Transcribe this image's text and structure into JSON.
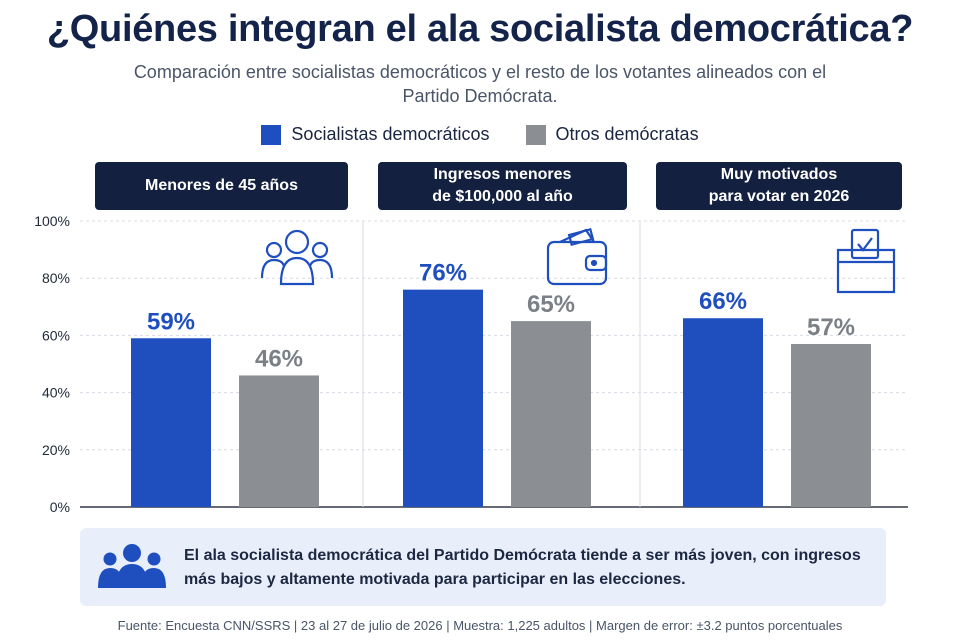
{
  "title": "¿Quiénes integran el ala socialista democrática?",
  "subtitle": "Comparación entre socialistas democráticos y el resto de los votantes alineados con el Partido Demócrata.",
  "colors": {
    "socialistas": "#1f4fbf",
    "otros": "#8b8e93",
    "header_bg": "#13203f",
    "summary_bg": "#e9effa"
  },
  "chart_data": {
    "type": "bar",
    "categories": [
      "Menores de 45 años",
      "Ingresos menores\nde $100,000 al año",
      "Muy motivados\npara votar en 2026"
    ],
    "category_icons": [
      "people-group-icon",
      "wallet-icon",
      "ballot-box-icon"
    ],
    "series": [
      {
        "name": "Socialistas democráticos",
        "values": [
          59,
          76,
          66
        ],
        "labels": [
          "59%",
          "76%",
          "66%"
        ]
      },
      {
        "name": "Otros demócratas",
        "values": [
          46,
          65,
          57
        ],
        "labels": [
          "46%",
          "65%",
          "57%"
        ]
      }
    ],
    "ylim": [
      0,
      100
    ],
    "yticks": [
      "0%",
      "20%",
      "40%",
      "60%",
      "80%",
      "100%"
    ],
    "grid": true,
    "legend": "top-center"
  },
  "summary": {
    "icon": "people-group-icon",
    "text": "El ala socialista democrática del Partido Demócrata tiende a ser más joven, con ingresos más bajos y altamente motivada para participar en las elecciones."
  },
  "source": "Fuente: Encuesta CNN/SSRS  |  23 al 27 de julio de 2026  |  Muestra: 1,225 adultos  |  Margen de error: ±3.2 puntos porcentuales"
}
